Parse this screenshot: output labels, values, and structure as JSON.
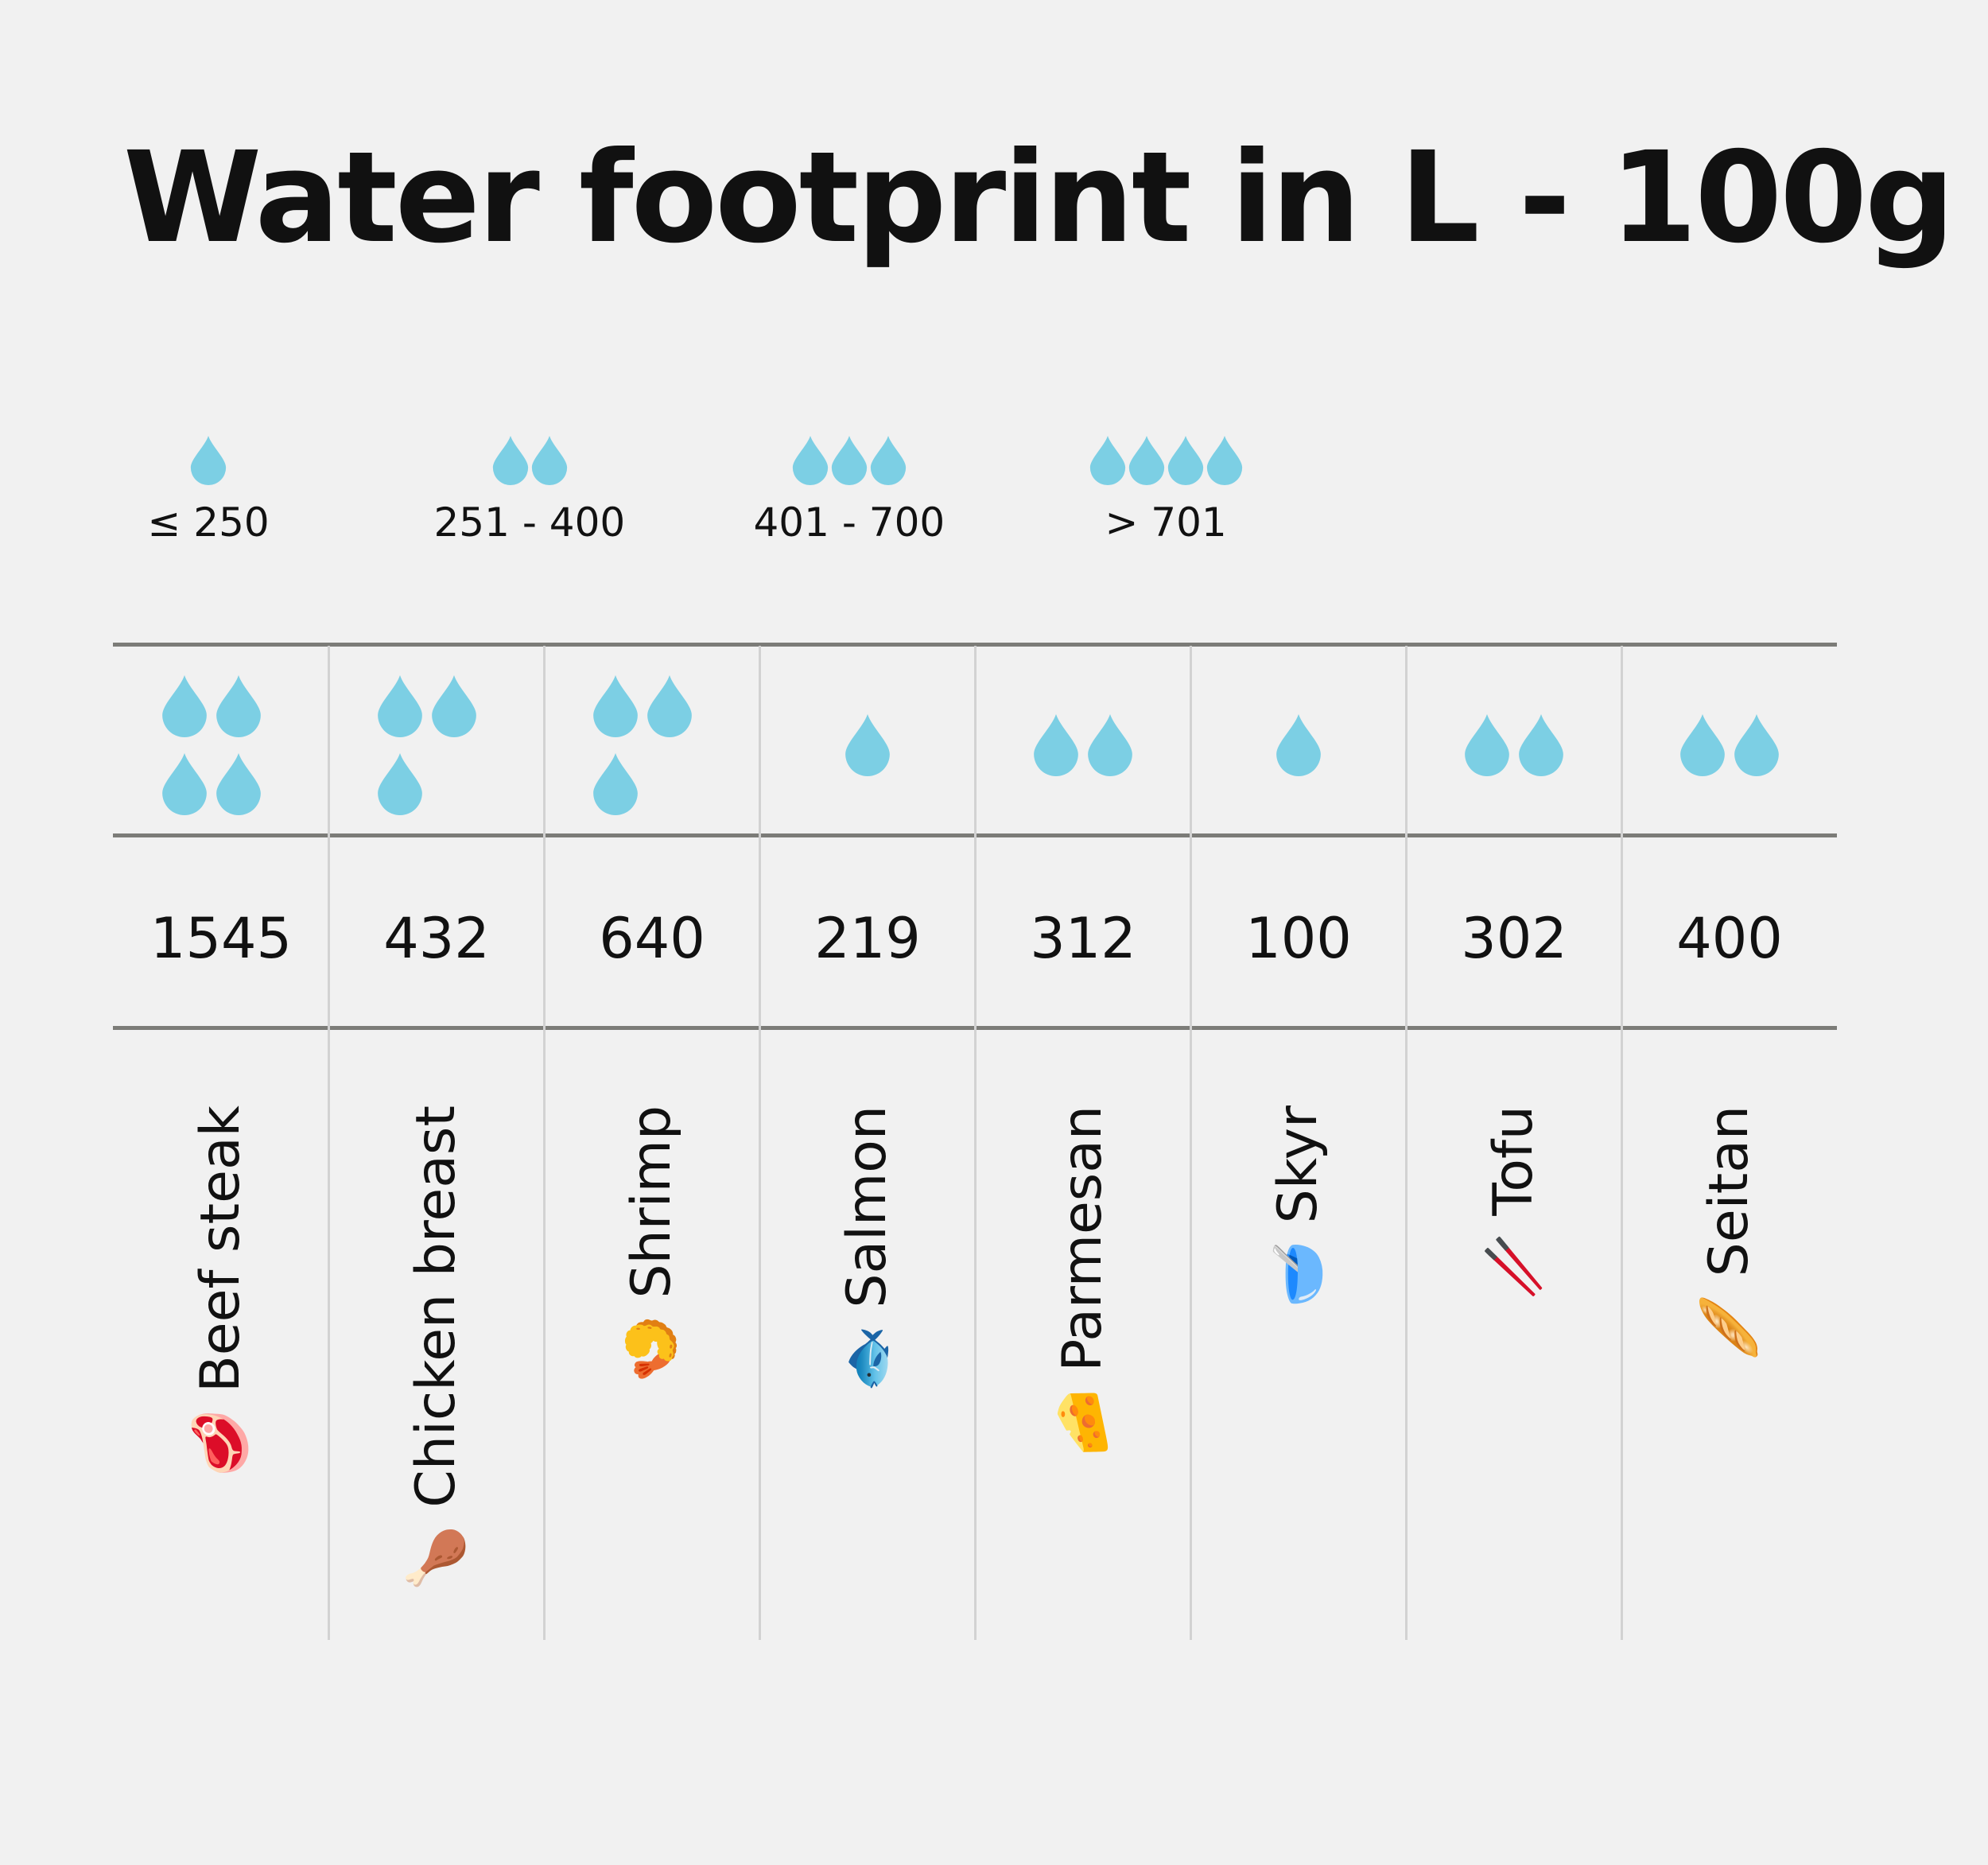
{
  "title": "Water footprint in L - 100g",
  "colors": {
    "drop": "#7ccfe4",
    "background": "#f1f1f1",
    "rule": "#7c7c78"
  },
  "legend": [
    {
      "drops": 1,
      "label": "≤ 250"
    },
    {
      "drops": 2,
      "label": "251 - 400"
    },
    {
      "drops": 3,
      "label": "401 - 700"
    },
    {
      "drops": 4,
      "label": "> 701"
    }
  ],
  "chart_data": {
    "type": "table",
    "title": "Water footprint in L - 100g",
    "categories": [
      "Beef steak",
      "Chicken breast",
      "Shrimp",
      "Salmon",
      "Parmesan",
      "Skyr",
      "Tofu",
      "Seitan"
    ],
    "values": [
      1545,
      432,
      640,
      219,
      312,
      100,
      302,
      400
    ],
    "drop_levels": [
      4,
      3,
      3,
      1,
      2,
      1,
      2,
      2
    ],
    "icons": [
      "🥩",
      "🍗",
      "🍤",
      "🐟",
      "🧀",
      "🥣",
      "🥢",
      "🥖"
    ]
  }
}
